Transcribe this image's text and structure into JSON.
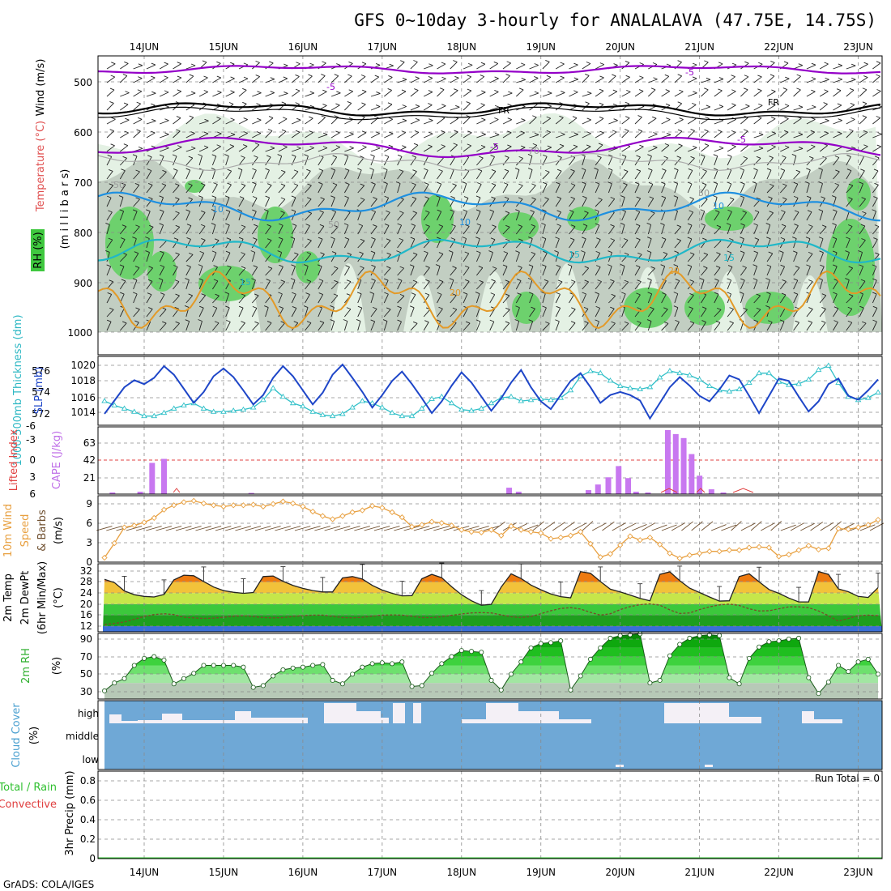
{
  "title": "GFS 0~10day 3-hourly for ANALALAVA (47.75E, 14.75S)",
  "credit": "GrADS: COLA/IGES",
  "colors": {
    "frame": "#000000",
    "grid": "#8a8a8a",
    "rh_light": "#e4f1e4",
    "rh_mid": "#c2cec2",
    "rh_dark": "#6dd16d",
    "t_minus5": "#9400c8",
    "t_fr": "#000000",
    "t_10": "#1e90e0",
    "t_15": "#20b8c8",
    "t_20": "#e39a28",
    "slp": "#1e46c8",
    "thickness": "#30c0c8",
    "cape": "#c878f0",
    "lifted": "#e04040",
    "wind10": "#e8a040",
    "barb": "#705030",
    "dewpt": "#7a4a2a",
    "cloud": "#6fa8d6",
    "cloud_gap": "#f4f0f6",
    "precip": "#30c030"
  },
  "dates": [
    "14JUN",
    "15JUN",
    "16JUN",
    "17JUN",
    "18JUN",
    "19JUN",
    "20JUN",
    "21JUN",
    "22JUN",
    "23JUN"
  ],
  "panels": {
    "upper": {
      "labels": {
        "wind": "Wind (m/s)",
        "temp": "Temperature (°C)",
        "rh": "RH (%)",
        "axis": "(m i l l i b a r s)"
      },
      "yticks": [
        "500",
        "600",
        "700",
        "800",
        "900",
        "1000"
      ],
      "contour_labels": [
        "-5",
        "-5",
        "-5",
        "-5",
        "FR",
        "FR",
        "10",
        "10",
        "15",
        "15",
        "20",
        "20",
        "15",
        "10",
        "50",
        "50",
        "50",
        "70"
      ]
    },
    "slp": {
      "labels": {
        "thick": "1000-500mb Thickness (dm)",
        "slp": "SLP (mb)"
      },
      "yticks_left": [
        "572",
        "574",
        "576"
      ],
      "yticks_right": [
        "1014",
        "1016",
        "1018",
        "1020"
      ]
    },
    "cape": {
      "labels": {
        "lifted": "Lifted Index",
        "cape": "CAPE (J/kg)"
      },
      "yticks_left": [
        "-6",
        "-3",
        "0",
        "3",
        "6"
      ],
      "yticks_right": [
        "21",
        "42",
        "63"
      ]
    },
    "wind10": {
      "labels": {
        "main": "10m Wind",
        "speed": "Speed",
        "barbs": "& Barbs",
        "unit": "(m/s)"
      },
      "yticks": [
        "0",
        "3",
        "6",
        "9"
      ]
    },
    "temp2m": {
      "labels": {
        "t": "2m Temp",
        "d": "2m DewPt",
        "mm": "(6hr Min/Max)",
        "unit": "(°C)"
      },
      "yticks": [
        "12",
        "16",
        "20",
        "24",
        "28",
        "32"
      ]
    },
    "rh2m": {
      "labels": {
        "main": "2m RH",
        "unit": "(%)"
      },
      "yticks": [
        "30",
        "50",
        "70",
        "90"
      ]
    },
    "cloud": {
      "labels": {
        "main": "Cloud Cover",
        "unit": "(%)"
      },
      "levels": [
        "high",
        "middle",
        "low"
      ]
    },
    "precip": {
      "labels": {
        "total": "Total / Rain",
        "conv": "Convective",
        "axis": "3hr Precip (mm)"
      },
      "yticks": [
        "0",
        "0.2",
        "0.4",
        "0.6",
        "0.8"
      ],
      "run_total": "Run Total = 0"
    }
  },
  "chart_data": [
    {
      "type": "line",
      "title": "SLP (mb) and 1000-500mb Thickness (dm)",
      "x_days": [
        13.5,
        13.625,
        13.75,
        13.875,
        14.0,
        14.125,
        14.25,
        14.375,
        14.5,
        14.625,
        14.75,
        14.875,
        15.0,
        15.125,
        15.25,
        15.375,
        15.5,
        15.625,
        15.75,
        15.875,
        16.0,
        16.125,
        16.25,
        16.375,
        16.5,
        16.625,
        16.75,
        16.875,
        17.0,
        17.125,
        17.25,
        17.375,
        17.5,
        17.625,
        17.75,
        17.875,
        18.0,
        18.125,
        18.25,
        18.375,
        18.5,
        18.625,
        18.75,
        18.875,
        19.0,
        19.125,
        19.25,
        19.375,
        19.5,
        19.625,
        19.75,
        19.875,
        20.0,
        20.125,
        20.25,
        20.375,
        20.5,
        20.625,
        20.75,
        20.875,
        21.0,
        21.125,
        21.25,
        21.375,
        21.5,
        21.625,
        21.75,
        21.875,
        22.0,
        22.125,
        22.25,
        22.375,
        22.5,
        22.625,
        22.75,
        22.875,
        23.0,
        23.125,
        23.25
      ],
      "series": [
        {
          "name": "SLP (mb)",
          "values": [
            1013.8,
            1015.5,
            1017.2,
            1018.1,
            1017.6,
            1018.4,
            1019.9,
            1018.8,
            1017.0,
            1015.2,
            1016.6,
            1018.6,
            1019.6,
            1018.5,
            1016.8,
            1015.0,
            1016.2,
            1018.4,
            1019.9,
            1018.6,
            1016.8,
            1015.0,
            1016.5,
            1018.8,
            1020.1,
            1018.4,
            1016.6,
            1014.6,
            1016.2,
            1018.0,
            1019.2,
            1017.6,
            1015.8,
            1013.9,
            1015.4,
            1017.4,
            1019.1,
            1017.8,
            1016.0,
            1014.2,
            1015.8,
            1017.8,
            1019.4,
            1017.2,
            1015.4,
            1014.4,
            1016.2,
            1018.0,
            1019.0,
            1017.2,
            1015.2,
            1016.2,
            1016.6,
            1016.2,
            1015.5,
            1013.2,
            1015.2,
            1017.2,
            1018.5,
            1017.4,
            1016.1,
            1015.4,
            1016.9,
            1018.7,
            1018.2,
            1016.1,
            1013.9,
            1016.1,
            1018.3,
            1018.0,
            1016.0,
            1014.1,
            1015.4,
            1017.6,
            1018.3,
            1016.1,
            1015.6,
            1016.8,
            1018.2
          ]
        },
        {
          "name": "1000-500mb Thickness (dm)",
          "values": [
            573.2,
            572.8,
            572.5,
            572.2,
            571.8,
            571.8,
            572.1,
            572.5,
            572.8,
            573.0,
            572.5,
            572.2,
            572.2,
            572.3,
            572.4,
            572.6,
            573.3,
            574.4,
            573.6,
            573.0,
            572.7,
            572.2,
            571.9,
            571.8,
            572.0,
            572.6,
            573.2,
            573.0,
            572.6,
            572.1,
            571.8,
            571.8,
            572.5,
            573.4,
            573.6,
            573.0,
            572.4,
            572.3,
            572.5,
            573.0,
            573.5,
            573.6,
            573.2,
            573.3,
            573.4,
            573.3,
            573.5,
            574.2,
            575.5,
            576.0,
            575.8,
            575.1,
            574.6,
            574.4,
            574.3,
            574.5,
            575.4,
            576.0,
            575.8,
            575.6,
            575.2,
            574.6,
            574.2,
            574.1,
            574.3,
            574.9,
            575.8,
            575.8,
            575.0,
            574.7,
            574.8,
            575.2,
            576.1,
            576.5,
            574.9,
            573.6,
            573.3,
            573.5,
            574.0
          ]
        }
      ],
      "ylim_slp": [
        1012.5,
        1021
      ],
      "ylim_thickness": [
        571,
        577
      ]
    },
    {
      "type": "bar",
      "title": "CAPE (J/kg)",
      "x_days": [
        13.6,
        13.95,
        14.1,
        14.25,
        15.35,
        18.6,
        18.72,
        19.6,
        19.72,
        19.85,
        19.98,
        20.1,
        20.2,
        20.35,
        20.6,
        20.7,
        20.8,
        20.9,
        21.0,
        21.15,
        21.3
      ],
      "values": [
        2,
        3,
        39,
        44,
        1.5,
        8,
        3,
        5,
        12,
        21,
        35,
        20,
        3,
        2,
        80,
        75,
        70,
        50,
        23,
        6,
        2
      ],
      "ylim": [
        0,
        84
      ],
      "grid": true
    },
    {
      "type": "line",
      "title": "10m Wind Speed (m/s)",
      "x_days": [
        13.5,
        13.625,
        13.75,
        13.875,
        14.0,
        14.125,
        14.25,
        14.375,
        14.5,
        14.625,
        14.75,
        14.875,
        15.0,
        15.125,
        15.25,
        15.375,
        15.5,
        15.625,
        15.75,
        15.875,
        16.0,
        16.125,
        16.25,
        16.375,
        16.5,
        16.625,
        16.75,
        16.875,
        17.0,
        17.125,
        17.25,
        17.375,
        17.5,
        17.625,
        17.75,
        17.875,
        18.0,
        18.125,
        18.25,
        18.375,
        18.5,
        18.625,
        18.75,
        18.875,
        19.0,
        19.125,
        19.25,
        19.375,
        19.5,
        19.625,
        19.75,
        19.875,
        20.0,
        20.125,
        20.25,
        20.375,
        20.5,
        20.625,
        20.75,
        20.875,
        21.0,
        21.125,
        21.25,
        21.375,
        21.5,
        21.625,
        21.75,
        21.875,
        22.0,
        22.125,
        22.25,
        22.375,
        22.5,
        22.625,
        22.75,
        22.875,
        23.0,
        23.125,
        23.25
      ],
      "values": [
        0.7,
        3.0,
        5.5,
        5.8,
        6.3,
        7.0,
        8.3,
        9.0,
        9.5,
        9.7,
        9.3,
        9.0,
        8.8,
        9.0,
        9.0,
        9.1,
        8.8,
        9.2,
        9.6,
        9.3,
        8.8,
        8.0,
        7.3,
        6.8,
        7.3,
        7.9,
        8.2,
        8.9,
        8.6,
        7.9,
        7.1,
        5.6,
        5.9,
        6.4,
        6.2,
        5.8,
        5.1,
        4.8,
        4.7,
        5.1,
        4.2,
        5.7,
        5.1,
        4.8,
        4.6,
        3.7,
        3.9,
        4.2,
        4.8,
        2.9,
        0.8,
        1.3,
        2.7,
        4.1,
        3.5,
        3.9,
        2.8,
        1.4,
        0.6,
        1.1,
        1.4,
        1.7,
        1.7,
        1.9,
        1.9,
        2.3,
        2.4,
        2.3,
        0.9,
        1.2,
        1.9,
        2.6,
        2.0,
        2.2,
        5.3,
        5.2,
        5.5,
        5.9,
        6.7
      ],
      "ylim": [
        0,
        10
      ]
    },
    {
      "type": "area",
      "title": "2m Temp / 2m DewPt (°C)",
      "x_days": [
        13.5,
        13.625,
        13.75,
        13.875,
        14.0,
        14.125,
        14.25,
        14.375,
        14.5,
        14.625,
        14.75,
        14.875,
        15.0,
        15.125,
        15.25,
        15.375,
        15.5,
        15.625,
        15.75,
        15.875,
        16.0,
        16.125,
        16.25,
        16.375,
        16.5,
        16.625,
        16.75,
        16.875,
        17.0,
        17.125,
        17.25,
        17.375,
        17.5,
        17.625,
        17.75,
        17.875,
        18.0,
        18.125,
        18.25,
        18.375,
        18.5,
        18.625,
        18.75,
        18.875,
        19.0,
        19.125,
        19.25,
        19.375,
        19.5,
        19.625,
        19.75,
        19.875,
        20.0,
        20.125,
        20.25,
        20.375,
        20.5,
        20.625,
        20.75,
        20.875,
        21.0,
        21.125,
        21.25,
        21.375,
        21.5,
        21.625,
        21.75,
        21.875,
        22.0,
        22.125,
        22.25,
        22.375,
        22.5,
        22.625,
        22.75,
        22.875,
        23.0,
        23.125,
        23.25
      ],
      "series": [
        {
          "name": "2m Temp",
          "values": [
            29.0,
            27.8,
            24.8,
            23.4,
            22.8,
            22.6,
            23.5,
            28.8,
            30.5,
            30.3,
            28.2,
            26.2,
            24.9,
            24.3,
            23.9,
            24.2,
            30.0,
            30.2,
            28.3,
            26.8,
            25.7,
            24.9,
            24.4,
            24.4,
            29.5,
            30.0,
            29.1,
            26.8,
            25.1,
            23.9,
            23.0,
            23.1,
            29.2,
            30.8,
            29.6,
            26.3,
            23.4,
            21.2,
            19.6,
            19.9,
            26.2,
            31.0,
            29.3,
            26.9,
            25.2,
            23.7,
            22.7,
            22.3,
            31.8,
            31.2,
            28.2,
            25.4,
            24.4,
            23.3,
            22.1,
            21.2,
            30.8,
            31.7,
            28.5,
            25.8,
            24.2,
            22.6,
            21.1,
            21.2,
            30.0,
            31.0,
            28.1,
            25.3,
            23.9,
            22.2,
            20.8,
            20.8,
            31.8,
            30.8,
            25.5,
            24.5,
            22.8,
            22.4,
            26.0
          ]
        },
        {
          "name": "2m DewPt",
          "values": [
            12.6,
            13.0,
            13.5,
            14.5,
            15.5,
            16.2,
            16.5,
            16.2,
            15.2,
            15.0,
            14.8,
            14.9,
            15.2,
            15.6,
            15.8,
            15.5,
            15.1,
            15.0,
            15.1,
            15.5,
            15.8,
            16.0,
            16.0,
            15.6,
            15.1,
            15.0,
            15.2,
            15.6,
            16.0,
            16.1,
            16.0,
            15.6,
            15.1,
            15.1,
            15.4,
            15.9,
            16.4,
            16.8,
            16.9,
            16.8,
            16.1,
            15.4,
            15.1,
            15.5,
            16.5,
            17.6,
            18.4,
            18.7,
            18.2,
            17.0,
            16.0,
            16.5,
            18.0,
            19.1,
            19.8,
            20.1,
            19.6,
            17.9,
            16.6,
            16.8,
            18.0,
            19.0,
            19.7,
            20.0,
            19.5,
            18.3,
            17.5,
            17.6,
            18.3,
            19.0,
            19.0,
            18.7,
            17.5,
            15.8,
            13.8,
            14.8,
            15.8,
            16.0,
            15.8
          ]
        }
      ],
      "ylim": [
        11,
        34
      ]
    },
    {
      "type": "area",
      "title": "2m RH (%)",
      "x_days": [
        13.5,
        13.625,
        13.75,
        13.875,
        14.0,
        14.125,
        14.25,
        14.375,
        14.5,
        14.625,
        14.75,
        14.875,
        15.0,
        15.125,
        15.25,
        15.375,
        15.5,
        15.625,
        15.75,
        15.875,
        16.0,
        16.125,
        16.25,
        16.375,
        16.5,
        16.625,
        16.75,
        16.875,
        17.0,
        17.125,
        17.25,
        17.375,
        17.5,
        17.625,
        17.75,
        17.875,
        18.0,
        18.125,
        18.25,
        18.375,
        18.5,
        18.625,
        18.75,
        18.875,
        19.0,
        19.125,
        19.25,
        19.375,
        19.5,
        19.625,
        19.75,
        19.875,
        20.0,
        20.125,
        20.25,
        20.375,
        20.5,
        20.625,
        20.75,
        20.875,
        21.0,
        21.125,
        21.25,
        21.375,
        21.5,
        21.625,
        21.75,
        21.875,
        22.0,
        22.125,
        22.25,
        22.375,
        22.5,
        22.625,
        22.75,
        22.875,
        23.0,
        23.125,
        23.25
      ],
      "values": [
        31,
        40,
        45,
        60,
        68,
        70,
        66,
        39,
        45,
        51,
        60,
        60,
        60,
        60,
        58,
        35,
        37,
        48,
        55,
        57,
        58,
        60,
        61,
        43,
        39,
        50,
        58,
        62,
        63,
        62,
        64,
        36,
        37,
        51,
        62,
        70,
        77,
        76,
        75,
        43,
        32,
        50,
        64,
        80,
        85,
        86,
        88,
        32,
        48,
        67,
        80,
        91,
        94,
        95,
        96,
        40,
        43,
        71,
        84,
        91,
        94,
        95,
        94,
        46,
        39,
        68,
        81,
        87,
        88,
        90,
        91,
        46,
        28,
        41,
        60,
        53,
        64,
        67,
        50
      ],
      "ylim": [
        25,
        98
      ]
    },
    {
      "type": "bar",
      "title": "Cloud Cover (%)",
      "series": [
        {
          "name": "high",
          "values": [
            true,
            true,
            true,
            true,
            true,
            true,
            true,
            true,
            true,
            true
          ]
        },
        {
          "name": "middle",
          "values": [
            true,
            true,
            true,
            true,
            true,
            true,
            true,
            true,
            true,
            true
          ]
        },
        {
          "name": "low",
          "values": [
            true,
            true,
            true,
            true,
            true,
            true,
            true,
            true,
            true,
            true
          ]
        }
      ]
    },
    {
      "type": "line",
      "title": "3hr Precip (mm)",
      "values": [
        0,
        0,
        0,
        0,
        0,
        0,
        0,
        0,
        0,
        0
      ],
      "ylim": [
        0,
        0.9
      ],
      "run_total": 0
    }
  ]
}
